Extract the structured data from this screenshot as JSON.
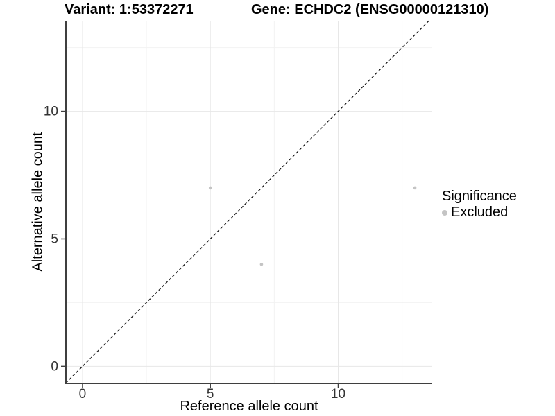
{
  "titles": {
    "variant": "Variant: 1:53372271",
    "gene": "Gene: ECHDC2 (ENSG00000121310)"
  },
  "chart_data": {
    "type": "scatter",
    "xlabel": "Reference allele count",
    "ylabel": "Alternative allele count",
    "xlim": [
      -0.65,
      13.65
    ],
    "ylim": [
      -0.67,
      13.55
    ],
    "x_ticks": [
      0,
      5,
      10
    ],
    "y_ticks": [
      0,
      5,
      10
    ],
    "x_minor_ticks": [
      2.5,
      7.5,
      12.5
    ],
    "y_minor_ticks": [
      2.5,
      7.5,
      12.5
    ],
    "grid": true,
    "identity_line": {
      "slope": 1,
      "intercept": 0,
      "style": "dashed",
      "color": "#1a1a1a"
    },
    "series": [
      {
        "name": "Excluded",
        "color": "#c4c4c4",
        "points": [
          {
            "x": 5,
            "y": 7
          },
          {
            "x": 7,
            "y": 4
          },
          {
            "x": 13,
            "y": 7
          }
        ]
      }
    ],
    "legend": {
      "title": "Significance",
      "position": "right",
      "items": [
        {
          "label": "Excluded",
          "color": "#c4c4c4"
        }
      ]
    }
  },
  "colors": {
    "background": "#ffffff",
    "grid_major": "#e7e7e7",
    "grid_minor": "#f2f2f2",
    "axis_line": "#3f3f3f",
    "tick_text": "#333333",
    "point": "#c4c4c4"
  }
}
